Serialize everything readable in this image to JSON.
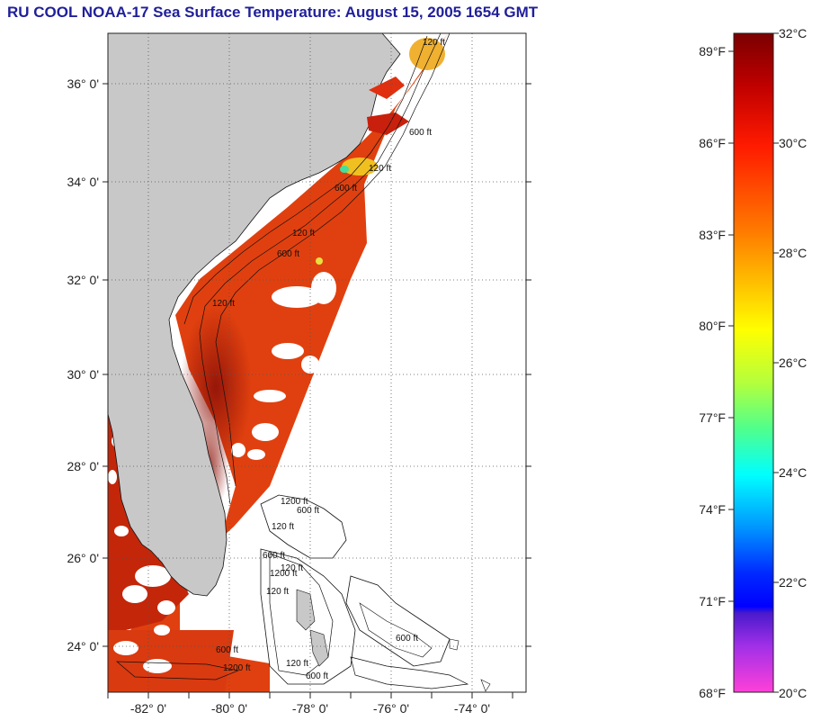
{
  "title": "RU COOL  NOAA-17  Sea Surface Temperature:  August 15, 2005 1654 GMT",
  "map": {
    "lat_labels": [
      "36° 0'",
      "34° 0'",
      "32° 0'",
      "30° 0'",
      "28° 0'",
      "26° 0'",
      "24° 0'"
    ],
    "lon_labels": [
      "-82° 0'",
      "-80° 0'",
      "-78° 0'",
      "-76° 0'",
      "-74° 0'"
    ],
    "contour_labels": [
      "120 ft",
      "600 ft",
      "120 ft",
      "600 ft",
      "120 ft",
      "600 ft",
      "1200 ft",
      "120 ft",
      "600 ft",
      "120 ft",
      "600 ft",
      "1200 ft",
      "120 ft",
      "600 ft",
      "1200 ft",
      "120 ft",
      "600 ft",
      "600 ft",
      "120 ft"
    ]
  },
  "colorbar": {
    "fahrenheit": [
      "89°F",
      "86°F",
      "83°F",
      "80°F",
      "77°F",
      "74°F",
      "71°F",
      "68°F"
    ],
    "celsius": [
      "32°C",
      "30°C",
      "28°C",
      "26°C",
      "24°C",
      "22°C",
      "20°C"
    ]
  },
  "colors": {
    "title": "#1f1f9a",
    "land": "#c8c8c8",
    "sst_warm": "#d8300c",
    "sst_hot": "#8e1208",
    "cloud_mask": "#ffffff"
  }
}
